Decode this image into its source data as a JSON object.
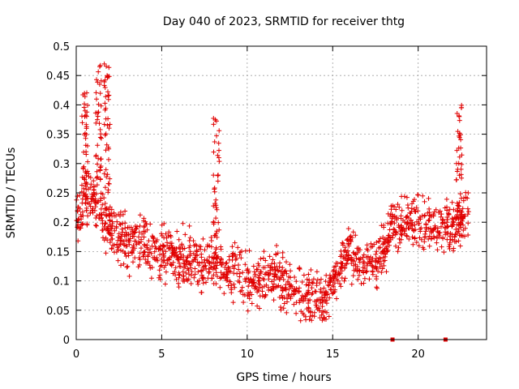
{
  "chart_data": {
    "type": "scatter",
    "title": "Day 040 of 2023, SRMTID for receiver thtg",
    "xlabel": "GPS time / hours",
    "ylabel": "SRMTID / TECUs",
    "xlim": [
      0,
      24
    ],
    "ylim": [
      0,
      0.5
    ],
    "xticks": [
      0,
      5,
      10,
      15,
      20
    ],
    "xtick_labels": [
      "0",
      "5",
      "10",
      "15",
      "20"
    ],
    "yticks": [
      0,
      0.05,
      0.1,
      0.15,
      0.2,
      0.25,
      0.3,
      0.35,
      0.4,
      0.45,
      0.5
    ],
    "ytick_labels": [
      "0",
      "0.05",
      "0.1",
      "0.15",
      "0.2",
      "0.25",
      "0.3",
      "0.35",
      "0.4",
      "0.45",
      "0.5"
    ],
    "grid": true,
    "marker": "+",
    "color": "#e00000",
    "trend": [
      [
        0.0,
        0.2
      ],
      [
        0.5,
        0.24
      ],
      [
        1.0,
        0.24
      ],
      [
        1.5,
        0.21
      ],
      [
        2.0,
        0.19
      ],
      [
        2.5,
        0.17
      ],
      [
        3.0,
        0.16
      ],
      [
        3.5,
        0.17
      ],
      [
        4.0,
        0.17
      ],
      [
        4.5,
        0.15
      ],
      [
        5.0,
        0.15
      ],
      [
        5.5,
        0.15
      ],
      [
        6.0,
        0.14
      ],
      [
        6.5,
        0.13
      ],
      [
        7.0,
        0.13
      ],
      [
        7.5,
        0.12
      ],
      [
        8.0,
        0.13
      ],
      [
        8.5,
        0.13
      ],
      [
        9.0,
        0.12
      ],
      [
        9.5,
        0.12
      ],
      [
        10.0,
        0.1
      ],
      [
        10.5,
        0.1
      ],
      [
        11.0,
        0.1
      ],
      [
        11.5,
        0.11
      ],
      [
        12.0,
        0.1
      ],
      [
        12.5,
        0.09
      ],
      [
        13.0,
        0.08
      ],
      [
        13.5,
        0.07
      ],
      [
        14.0,
        0.07
      ],
      [
        14.5,
        0.07
      ],
      [
        15.0,
        0.09
      ],
      [
        15.5,
        0.13
      ],
      [
        16.0,
        0.15
      ],
      [
        16.5,
        0.12
      ],
      [
        17.0,
        0.12
      ],
      [
        17.5,
        0.13
      ],
      [
        18.0,
        0.16
      ],
      [
        18.5,
        0.2
      ],
      [
        19.0,
        0.19
      ],
      [
        19.5,
        0.21
      ],
      [
        20.0,
        0.2
      ],
      [
        20.5,
        0.2
      ],
      [
        21.0,
        0.19
      ],
      [
        21.5,
        0.2
      ],
      [
        22.0,
        0.18
      ],
      [
        22.5,
        0.2
      ],
      [
        23.0,
        0.22
      ]
    ],
    "spikes": [
      {
        "x": 0.5,
        "y_max": 0.43
      },
      {
        "x": 1.3,
        "y_max": 0.47
      },
      {
        "x": 1.8,
        "y_max": 0.47
      },
      {
        "x": 8.2,
        "y_max": 0.38
      },
      {
        "x": 22.4,
        "y_max": 0.4
      }
    ],
    "spread": 0.045,
    "flagged_zero_points": [
      18.5,
      21.6
    ]
  }
}
